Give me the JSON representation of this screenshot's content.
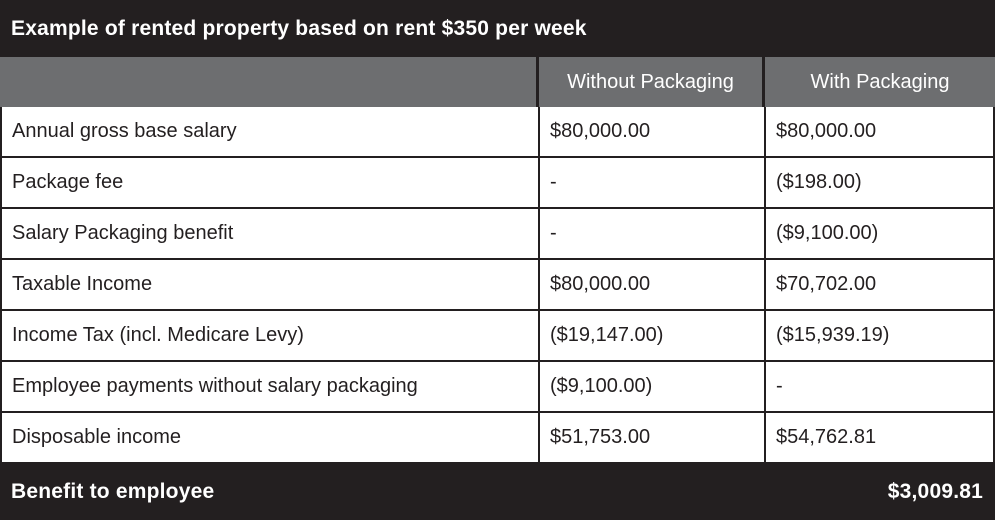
{
  "table": {
    "title": "Example of rented property based on rent $350 per week",
    "columns": [
      "",
      "Without Packaging",
      "With Packaging"
    ],
    "rows": [
      {
        "label": "Annual gross base salary",
        "without": "$80,000.00",
        "with": "$80,000.00"
      },
      {
        "label": "Package fee",
        "without": "-",
        "with": "($198.00)"
      },
      {
        "label": "Salary Packaging benefit",
        "without": "-",
        "with": "($9,100.00)"
      },
      {
        "label": "Taxable Income",
        "without": "$80,000.00",
        "with": "$70,702.00"
      },
      {
        "label": "Income Tax (incl. Medicare Levy)",
        "without": "($19,147.00)",
        "with": "($15,939.19)"
      },
      {
        "label": "Employee payments without salary packaging",
        "without": "($9,100.00)",
        "with": "-"
      },
      {
        "label": "Disposable income",
        "without": "$51,753.00",
        "with": "$54,762.81"
      }
    ],
    "footer": {
      "label": "Benefit to employee",
      "value": "$3,009.81"
    },
    "colors": {
      "dark_bg": "#231f20",
      "gray_bg": "#6d6e70",
      "row_bg": "#ffffff",
      "text_light": "#ffffff",
      "text_dark": "#231f20"
    }
  }
}
